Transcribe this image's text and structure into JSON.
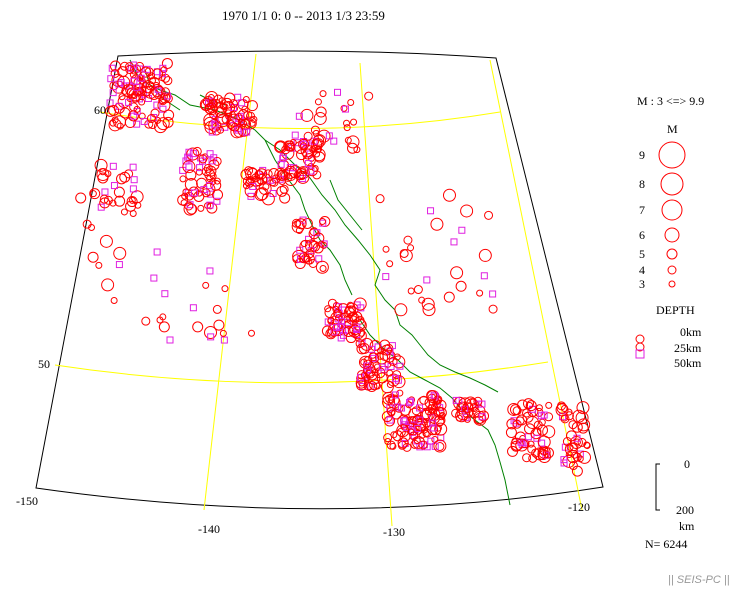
{
  "title": "1970 1/1 0: 0 -- 2013 1/3 23:59",
  "map": {
    "lon_labels": [
      "-150",
      "-140",
      "-130",
      "-120"
    ],
    "lat_labels": [
      "60",
      "50"
    ]
  },
  "legend": {
    "magnitude_range": "M : 3 <=> 9.9",
    "magnitude_header": "M",
    "magnitudes": [
      "9",
      "8",
      "7",
      "6",
      "5",
      "4",
      "3"
    ],
    "depth_header": "DEPTH",
    "depths": [
      "0km",
      "25km",
      "50km"
    ],
    "scale_top": "0",
    "scale_bottom": "200",
    "scale_unit": "km",
    "count": "N= 6244"
  },
  "footer": "|| SEIS-PC ||",
  "colors": {
    "shallow": "#ff0000",
    "deep": "#e020e0",
    "grid": "#ffff00",
    "coast": "#008000",
    "frame": "#000000"
  }
}
